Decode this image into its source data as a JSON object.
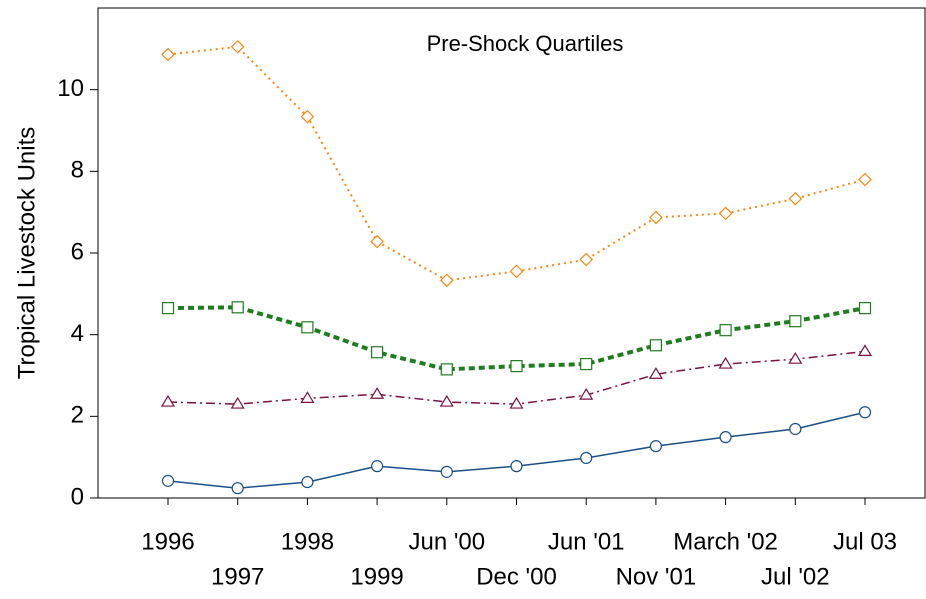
{
  "chart_data": {
    "type": "line",
    "title": "Pre-Shock Quartiles",
    "y_label": "Tropical Livestock Units",
    "categories": [
      "1996",
      "1997",
      "1998",
      "1999",
      "Jun '00",
      "Dec '00",
      "Jun '01",
      "Nov '01",
      "March '02",
      "Jul '02",
      "Jul 03"
    ],
    "series": [
      {
        "color": "#f5870f",
        "style": "dotted",
        "marker": "diamond",
        "values": [
          10.86,
          11.05,
          9.34,
          6.28,
          5.33,
          5.55,
          5.84,
          6.87,
          6.97,
          7.33,
          7.8
        ]
      },
      {
        "color": "#1e7d1e",
        "style": "dashed",
        "marker": "square",
        "values": [
          4.65,
          4.67,
          4.18,
          3.57,
          3.15,
          3.23,
          3.28,
          3.74,
          4.11,
          4.33,
          4.65
        ]
      },
      {
        "color": "#7a1044",
        "style": "dashdot",
        "marker": "triangle",
        "values": [
          2.35,
          2.3,
          2.44,
          2.54,
          2.35,
          2.3,
          2.52,
          3.03,
          3.28,
          3.4,
          3.59
        ]
      },
      {
        "color": "#1a4f8a",
        "style": "solid",
        "marker": "circle",
        "values": [
          0.42,
          0.24,
          0.39,
          0.78,
          0.64,
          0.78,
          0.98,
          1.27,
          1.49,
          1.69,
          2.1
        ]
      }
    ],
    "ylim": [
      0,
      12
    ],
    "yticks": [
      0,
      2,
      4,
      6,
      8,
      10
    ],
    "grid": false
  }
}
